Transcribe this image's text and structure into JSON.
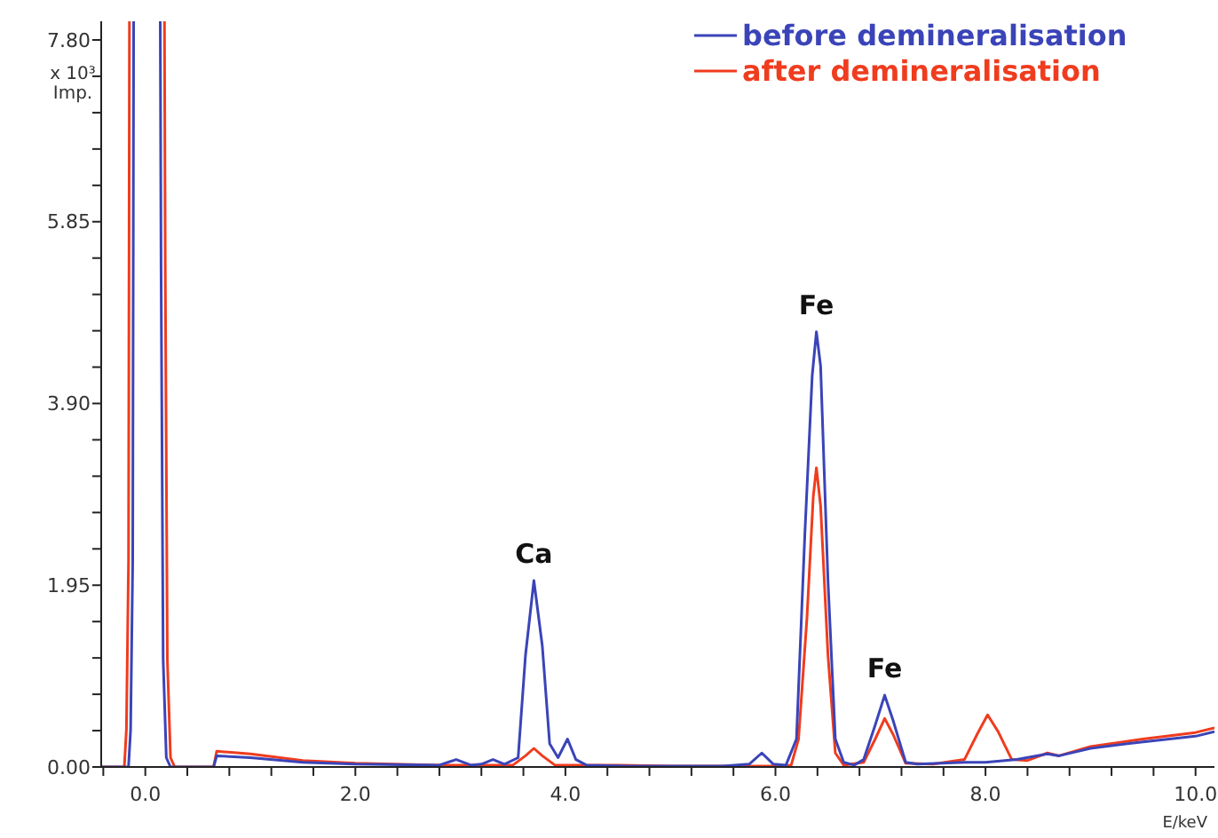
{
  "chart_data": {
    "type": "line",
    "xlabel": "E/keV",
    "ylabel": "x 10³ Imp.",
    "xlim": [
      -0.42,
      10.18
    ],
    "ylim": [
      0,
      8.0
    ],
    "xticks": [
      {
        "value": -0.4,
        "label": null
      },
      {
        "value": 0,
        "label": "0.0"
      },
      {
        "value": 0.4,
        "label": null
      },
      {
        "value": 0.8,
        "label": null
      },
      {
        "value": 1.2,
        "label": null
      },
      {
        "value": 1.6,
        "label": null
      },
      {
        "value": 2,
        "label": "2.0"
      },
      {
        "value": 2.4,
        "label": null
      },
      {
        "value": 2.8,
        "label": null
      },
      {
        "value": 3.2,
        "label": null
      },
      {
        "value": 3.6,
        "label": null
      },
      {
        "value": 4,
        "label": "4.0"
      },
      {
        "value": 4.4,
        "label": null
      },
      {
        "value": 4.8,
        "label": null
      },
      {
        "value": 5.2,
        "label": null
      },
      {
        "value": 5.6,
        "label": null
      },
      {
        "value": 6,
        "label": "6.0"
      },
      {
        "value": 6.4,
        "label": null
      },
      {
        "value": 6.8,
        "label": null
      },
      {
        "value": 7.2,
        "label": null
      },
      {
        "value": 7.6,
        "label": null
      },
      {
        "value": 8,
        "label": "8.0"
      },
      {
        "value": 8.4,
        "label": null
      },
      {
        "value": 8.8,
        "label": null
      },
      {
        "value": 9.2,
        "label": null
      },
      {
        "value": 9.6,
        "label": null
      },
      {
        "value": 10,
        "label": "10.0"
      }
    ],
    "yticks": [
      {
        "value": 0,
        "label": "0.00"
      },
      {
        "value": 0.39,
        "label": null
      },
      {
        "value": 0.78,
        "label": null
      },
      {
        "value": 1.17,
        "label": null
      },
      {
        "value": 1.56,
        "label": null
      },
      {
        "value": 1.95,
        "label": "1.95"
      },
      {
        "value": 2.34,
        "label": null
      },
      {
        "value": 2.73,
        "label": null
      },
      {
        "value": 3.12,
        "label": null
      },
      {
        "value": 3.51,
        "label": null
      },
      {
        "value": 3.9,
        "label": "3.90"
      },
      {
        "value": 4.29,
        "label": null
      },
      {
        "value": 4.68,
        "label": null
      },
      {
        "value": 5.07,
        "label": null
      },
      {
        "value": 5.46,
        "label": null
      },
      {
        "value": 5.85,
        "label": "5.85"
      },
      {
        "value": 6.24,
        "label": null
      },
      {
        "value": 6.63,
        "label": null
      },
      {
        "value": 7.02,
        "label": null
      },
      {
        "value": 7.41,
        "label": null
      },
      {
        "value": 7.8,
        "label": "7.80"
      }
    ],
    "grid": false,
    "legend": "top right",
    "marker": "none",
    "line_style": "solid",
    "series": [
      {
        "name": "before demineralisation",
        "color": "#3a44b8",
        "x": [
          -0.42,
          -0.16,
          -0.14,
          -0.12,
          -0.11,
          0.14,
          0.15,
          0.17,
          0.2,
          0.24,
          0.65,
          0.68,
          1.0,
          1.5,
          2.0,
          2.8,
          2.96,
          3.1,
          3.2,
          3.31,
          3.42,
          3.55,
          3.62,
          3.7,
          3.78,
          3.85,
          3.93,
          4.02,
          4.1,
          4.2,
          4.6,
          5.0,
          5.5,
          5.75,
          5.87,
          5.98,
          6.1,
          6.2,
          6.28,
          6.35,
          6.39,
          6.43,
          6.5,
          6.57,
          6.65,
          6.75,
          6.84,
          6.95,
          7.04,
          7.12,
          7.24,
          7.35,
          7.8,
          8.0,
          8.3,
          8.59,
          8.7,
          9.0,
          9.5,
          10.0,
          10.18
        ],
        "values": [
          0,
          0,
          0.4,
          2.2,
          null,
          null,
          5.35,
          1.15,
          0.1,
          0,
          0,
          0.12,
          0.1,
          0.05,
          0.03,
          0.02,
          0.08,
          0.02,
          0.03,
          0.08,
          0.03,
          0.1,
          1.2,
          2.0,
          1.3,
          0.25,
          0.1,
          0.3,
          0.08,
          0.02,
          0.01,
          0.01,
          0.01,
          0.03,
          0.15,
          0.03,
          0.02,
          0.3,
          2.5,
          4.2,
          4.67,
          4.3,
          2.0,
          0.3,
          0.05,
          0.02,
          0.08,
          0.45,
          0.77,
          0.5,
          0.05,
          0.03,
          0.05,
          0.05,
          0.08,
          0.14,
          0.12,
          0.2,
          0.27,
          0.33,
          0.38
        ]
      },
      {
        "name": "after demineralisation",
        "color": "#f03c1e",
        "x": [
          -0.42,
          -0.2,
          -0.18,
          -0.16,
          -0.15,
          0.18,
          0.19,
          0.21,
          0.24,
          0.28,
          0.65,
          0.68,
          1.0,
          1.5,
          2.0,
          2.8,
          3.5,
          3.62,
          3.7,
          3.78,
          3.9,
          4.5,
          5.0,
          5.5,
          6.0,
          6.15,
          6.22,
          6.3,
          6.36,
          6.39,
          6.43,
          6.5,
          6.57,
          6.65,
          6.84,
          6.95,
          7.04,
          7.12,
          7.24,
          7.5,
          7.8,
          7.92,
          8.02,
          8.12,
          8.25,
          8.4,
          8.59,
          8.7,
          9.0,
          9.5,
          10.0,
          10.18
        ],
        "values": [
          0,
          0,
          0.4,
          2.2,
          null,
          null,
          5.35,
          1.15,
          0.1,
          0,
          0,
          0.17,
          0.14,
          0.07,
          0.04,
          0.02,
          0.02,
          0.12,
          0.2,
          0.12,
          0.02,
          0.02,
          0.01,
          0.01,
          0.01,
          0.02,
          0.3,
          1.6,
          2.9,
          3.21,
          2.8,
          1.2,
          0.15,
          0.02,
          0.05,
          0.3,
          0.52,
          0.35,
          0.04,
          0.03,
          0.08,
          0.35,
          0.56,
          0.38,
          0.08,
          0.07,
          0.15,
          0.12,
          0.22,
          0.3,
          0.37,
          0.42
        ]
      }
    ],
    "annotations": [
      {
        "text": "Ca",
        "x": 3.7,
        "y": 2.0
      },
      {
        "text": "Fe",
        "x": 6.39,
        "y": 4.67
      },
      {
        "text": "Fe",
        "x": 7.04,
        "y": 0.77
      }
    ]
  }
}
